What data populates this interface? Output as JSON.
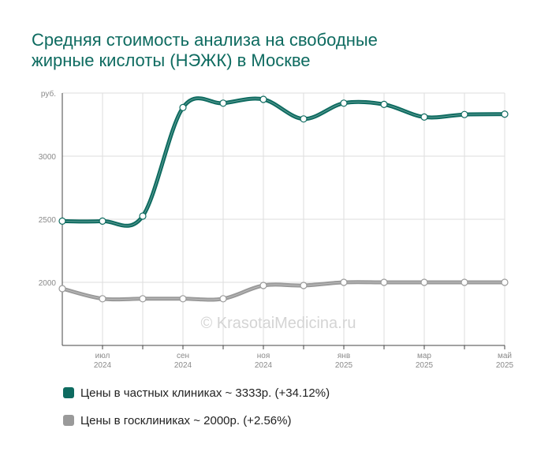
{
  "title": [
    "Средняя стоимость анализа на свободные",
    "жирные кислоты (НЭЖК) в Москве"
  ],
  "watermark": "© KrasotaiMedicina.ru",
  "colors": {
    "private": "#0e6b60",
    "public": "#9a9a9a",
    "grid": "#dddddd",
    "axis": "#444444",
    "tick_text": "#8a8a8a"
  },
  "chart_data": {
    "type": "line",
    "ylabel": "руб.",
    "ylim": [
      1500,
      3500
    ],
    "yticks": [
      2000,
      2500,
      3000
    ],
    "x_labels": [
      {
        "i": 1,
        "month": "июл",
        "year": "2024"
      },
      {
        "i": 3,
        "month": "сен",
        "year": "2024"
      },
      {
        "i": 5,
        "month": "ноя",
        "year": "2024"
      },
      {
        "i": 7,
        "month": "янв",
        "year": "2025"
      },
      {
        "i": 9,
        "month": "мар",
        "year": "2025"
      },
      {
        "i": 11,
        "month": "май",
        "year": "2025"
      }
    ],
    "x": [
      "2024-06",
      "2024-07",
      "2024-08",
      "2024-09",
      "2024-10",
      "2024-11",
      "2024-12",
      "2025-01",
      "2025-02",
      "2025-03",
      "2025-04",
      "2025-05"
    ],
    "series": [
      {
        "name": "Цены в частных клиниках ~ 3333р. (+34.12%)",
        "color": "#0e6b60",
        "values": [
          2485,
          2485,
          2525,
          3385,
          3420,
          3450,
          3295,
          3420,
          3410,
          3310,
          3330,
          3333
        ]
      },
      {
        "name": "Цены в госклиниках ~ 2000р. (+2.56%)",
        "color": "#9a9a9a",
        "values": [
          1950,
          1870,
          1870,
          1870,
          1870,
          1975,
          1975,
          2000,
          2000,
          2000,
          2000,
          2000
        ]
      }
    ]
  }
}
